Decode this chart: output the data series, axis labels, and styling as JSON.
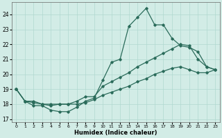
{
  "title": "",
  "xlabel": "Humidex (Indice chaleur)",
  "ylabel": "",
  "xlim": [
    -0.5,
    23.5
  ],
  "ylim": [
    16.8,
    24.8
  ],
  "yticks": [
    17,
    18,
    19,
    20,
    21,
    22,
    23,
    24
  ],
  "xticks": [
    0,
    1,
    2,
    3,
    4,
    5,
    6,
    7,
    8,
    9,
    10,
    11,
    12,
    13,
    14,
    15,
    16,
    17,
    18,
    19,
    20,
    21,
    22,
    23
  ],
  "xtick_labels": [
    "0",
    "1",
    "2",
    "3",
    "4",
    "5",
    "6",
    "7",
    "8",
    "9",
    "10",
    "11",
    "12",
    "13",
    "14",
    "15",
    "16",
    "17",
    "18",
    "19",
    "20",
    "21",
    "22",
    "23"
  ],
  "background_color": "#d2ece6",
  "grid_color": "#b0d8d0",
  "line_color": "#2a6b5a",
  "line1_x": [
    0,
    1,
    2,
    3,
    4,
    5,
    6,
    7,
    8,
    9,
    10,
    11,
    12,
    13,
    14,
    15,
    16,
    17,
    18,
    19,
    20,
    21,
    22,
    23
  ],
  "line1_y": [
    19.0,
    18.2,
    17.9,
    17.9,
    17.6,
    17.5,
    17.5,
    17.8,
    18.2,
    18.4,
    19.6,
    20.8,
    21.0,
    23.2,
    23.8,
    24.4,
    23.3,
    23.3,
    22.4,
    21.9,
    21.8,
    21.5,
    20.5,
    20.3
  ],
  "line2_x": [
    0,
    1,
    2,
    3,
    4,
    5,
    6,
    7,
    8,
    9,
    10,
    11,
    12,
    13,
    14,
    15,
    16,
    17,
    18,
    19,
    20,
    21,
    22,
    23
  ],
  "line2_y": [
    19.0,
    18.2,
    18.1,
    18.0,
    17.9,
    18.0,
    18.0,
    18.0,
    18.1,
    18.3,
    18.6,
    18.8,
    19.0,
    19.2,
    19.5,
    19.7,
    20.0,
    20.2,
    20.4,
    20.5,
    20.3,
    20.1,
    20.1,
    20.3
  ],
  "line3_x": [
    0,
    1,
    2,
    3,
    4,
    5,
    6,
    7,
    8,
    9,
    10,
    11,
    12,
    13,
    14,
    15,
    16,
    17,
    18,
    19,
    20,
    21,
    22,
    23
  ],
  "line3_y": [
    19.0,
    18.2,
    18.2,
    18.0,
    18.0,
    18.0,
    18.0,
    18.2,
    18.5,
    18.5,
    19.2,
    19.5,
    19.8,
    20.1,
    20.5,
    20.8,
    21.1,
    21.4,
    21.7,
    22.0,
    21.9,
    21.0,
    20.5,
    20.3
  ]
}
